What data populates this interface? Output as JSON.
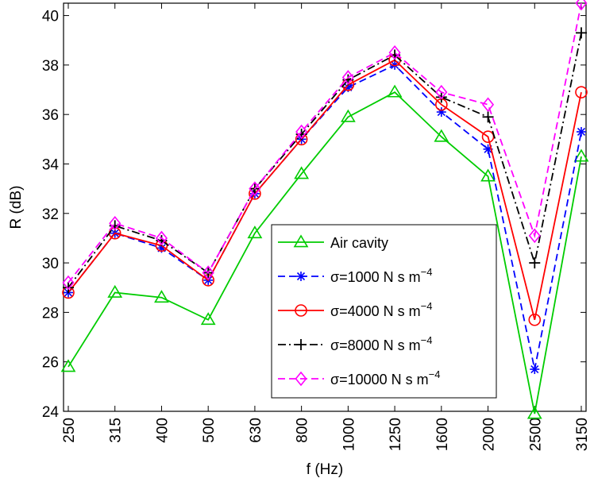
{
  "chart_data": {
    "type": "line",
    "title": "",
    "xlabel": "f (Hz)",
    "ylabel": "R (dB)",
    "categories": [
      "250",
      "315",
      "400",
      "500",
      "630",
      "800",
      "1000",
      "1250",
      "1600",
      "2000",
      "2500",
      "3150"
    ],
    "ylim": [
      24,
      40.5
    ],
    "yticks": [
      24,
      26,
      28,
      30,
      32,
      34,
      36,
      38,
      40
    ],
    "grid": false,
    "legend_position": "lower-right",
    "series": [
      {
        "name": "Air cavity",
        "color": "#00cc00",
        "linestyle": "solid",
        "marker": "triangle",
        "values": [
          25.8,
          28.8,
          28.6,
          27.7,
          31.2,
          33.6,
          35.9,
          36.9,
          35.1,
          33.5,
          23.9,
          34.3
        ]
      },
      {
        "name": "σ=1000 N s m",
        "name_sup": "−4",
        "color": "#0000ff",
        "linestyle": "dashed",
        "marker": "asterisk",
        "values": [
          28.8,
          31.2,
          30.6,
          29.3,
          32.8,
          35.0,
          37.1,
          38.0,
          36.1,
          34.6,
          25.7,
          35.3
        ]
      },
      {
        "name": "σ=4000 N s m",
        "name_sup": "−4",
        "color": "#ff0000",
        "linestyle": "solid",
        "marker": "circle",
        "values": [
          28.8,
          31.2,
          30.7,
          29.3,
          32.8,
          35.0,
          37.2,
          38.2,
          36.4,
          35.1,
          27.7,
          36.9
        ]
      },
      {
        "name": "σ=8000 N s m",
        "name_sup": "−4",
        "color": "#000000",
        "linestyle": "dashdot",
        "marker": "plus",
        "values": [
          29.0,
          31.5,
          30.9,
          29.6,
          33.0,
          35.2,
          37.4,
          38.4,
          36.7,
          35.9,
          30.0,
          39.3
        ]
      },
      {
        "name": "σ=10000 N s m",
        "name_sup": "−4",
        "color": "#ff00ff",
        "linestyle": "dashed",
        "marker": "diamond",
        "values": [
          29.2,
          31.6,
          31.0,
          29.6,
          33.0,
          35.3,
          37.5,
          38.5,
          36.9,
          36.4,
          31.1,
          40.5
        ]
      }
    ]
  }
}
